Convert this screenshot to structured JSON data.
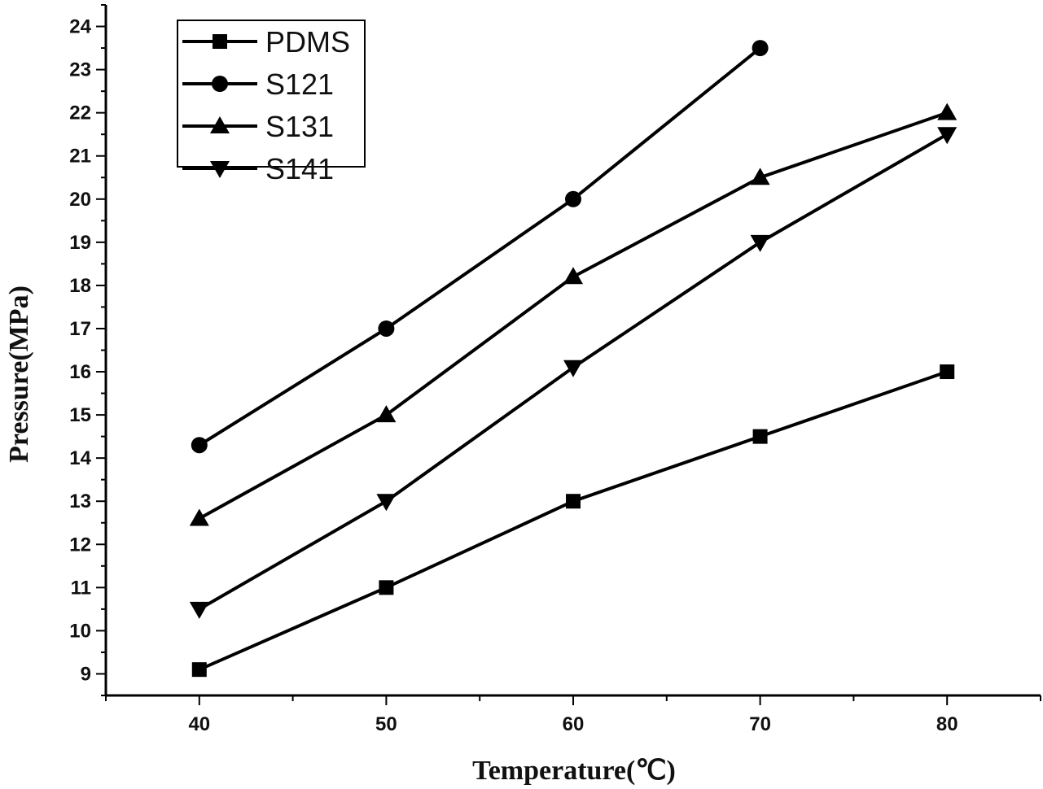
{
  "chart_data": {
    "type": "line",
    "title": "",
    "xlabel": "Temperature(℃)",
    "ylabel": "Pressure(MPa)",
    "xlim": [
      35,
      85
    ],
    "ylim": [
      8.5,
      24.5
    ],
    "xticks": [
      40,
      50,
      60,
      70,
      80
    ],
    "yticks": [
      9,
      10,
      11,
      12,
      13,
      14,
      15,
      16,
      17,
      18,
      19,
      20,
      21,
      22,
      23,
      24
    ],
    "grid": false,
    "legend_position": "top-left",
    "series": [
      {
        "name": "PDMS",
        "marker": "square",
        "x": [
          40,
          50,
          60,
          70,
          80
        ],
        "y": [
          9.1,
          11.0,
          13.0,
          14.5,
          16.0
        ]
      },
      {
        "name": "S121",
        "marker": "circle",
        "x": [
          40,
          50,
          60,
          70
        ],
        "y": [
          14.3,
          17.0,
          20.0,
          23.5
        ]
      },
      {
        "name": "S131",
        "marker": "triangle-up",
        "x": [
          40,
          50,
          60,
          70,
          80
        ],
        "y": [
          12.6,
          15.0,
          18.2,
          20.5,
          22.0
        ]
      },
      {
        "name": "S141",
        "marker": "triangle-down",
        "x": [
          40,
          50,
          60,
          70,
          80
        ],
        "y": [
          10.5,
          13.0,
          16.1,
          19.0,
          21.5
        ]
      }
    ]
  }
}
